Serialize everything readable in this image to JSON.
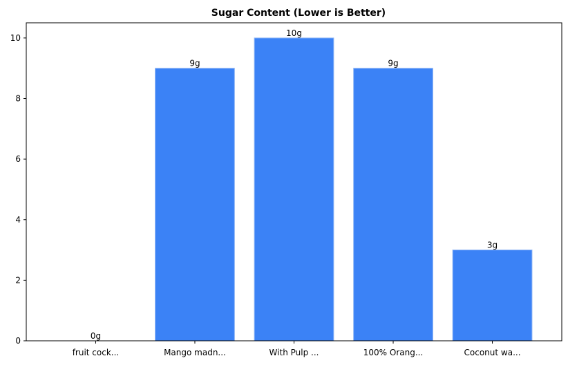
{
  "chart_data": {
    "type": "bar",
    "title": "Sugar Content (Lower is Better)",
    "xlabel": "",
    "ylabel": "",
    "categories": [
      "fruit cock...",
      "Mango madn...",
      "With Pulp ...",
      "100% Orang...",
      "Coconut wa..."
    ],
    "values": [
      0,
      9,
      10,
      9,
      3
    ],
    "value_labels": [
      "0g",
      "9g",
      "10g",
      "9g",
      "3g"
    ],
    "ylim": [
      0,
      10.5
    ],
    "yticks": [
      0,
      2,
      4,
      6,
      8,
      10
    ],
    "grid": false,
    "legend": "none",
    "bar_color": "#3b82f6",
    "bar_edge_color": "#93b8f5"
  }
}
